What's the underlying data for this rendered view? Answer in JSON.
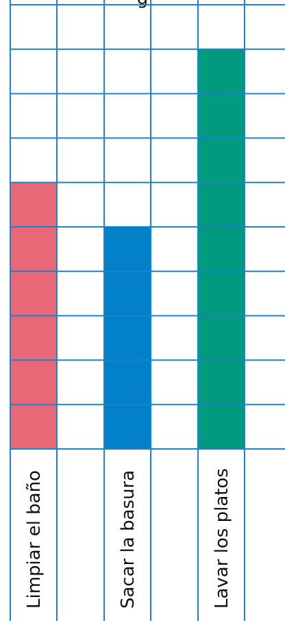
{
  "chart_data": {
    "type": "bar",
    "title_fragment": "g",
    "categories": [
      "Limpiar el baño",
      "",
      "Sacar la basura",
      "",
      "Lavar los platos",
      ""
    ],
    "values": [
      6,
      0,
      5,
      0,
      9,
      0
    ],
    "ylim": [
      0,
      10
    ],
    "grid": true,
    "legend": "none",
    "colors": {
      "grid": "#1a84c9",
      "bar_limpiar": "#e96877",
      "bar_basura": "#0280c8",
      "bar_lavar": "#009a80"
    }
  }
}
